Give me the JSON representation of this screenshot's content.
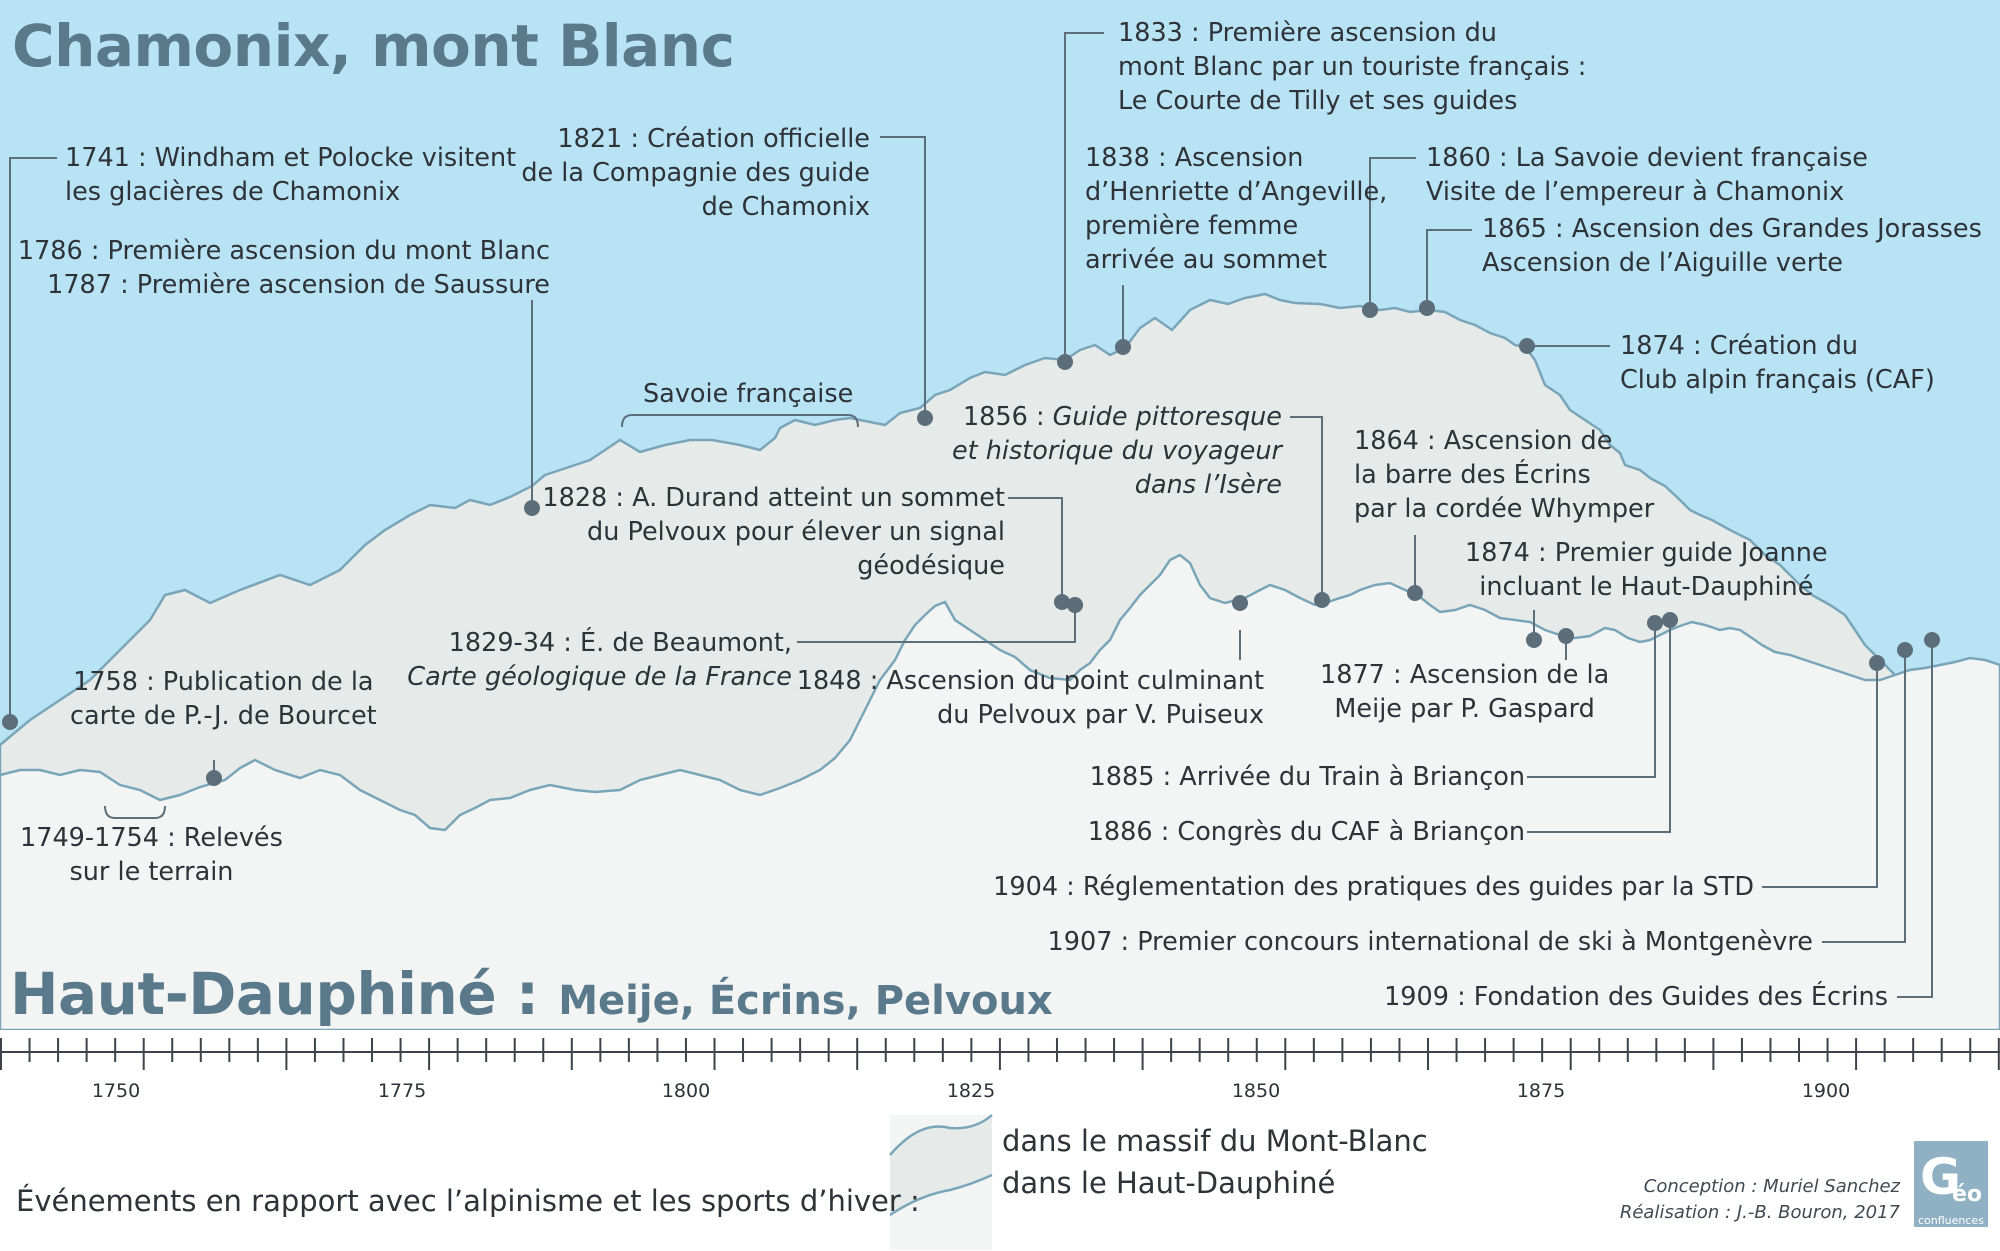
{
  "titles": {
    "top": "Chamonix, mont Blanc",
    "bottom_main": "Haut-Dauphiné : ",
    "bottom_sub": "Meije, Écrins, Pelvoux"
  },
  "colors": {
    "sky": "#b8e3f5",
    "mont_blanc_band": "#e6ebea",
    "haut_dauphine_band": "#f3f5f5",
    "outline": "#7aa5b8",
    "marker": "#5c6e7a",
    "title": "#5a7a8c"
  },
  "events": {
    "e1741": [
      "1741 : Windham et Polocke visitent",
      "les glacières de Chamonix"
    ],
    "e1786": [
      "1786 : Première ascension du mont Blanc",
      "1787 : Première ascension de Saussure"
    ],
    "e1821": [
      "1821 : Création officielle",
      "de la Compagnie des guide",
      "de Chamonix"
    ],
    "savoie": "Savoie française",
    "e1833": [
      "1833 : Première ascension du",
      "mont Blanc par un touriste français :",
      "Le Courte de Tilly et ses guides"
    ],
    "e1838": [
      "1838 : Ascension",
      "d’Henriette d’Angeville,",
      "première femme",
      "arrivée au sommet"
    ],
    "e1860": [
      "1860 : La Savoie devient française",
      "Visite de l’empereur à Chamonix"
    ],
    "e1865": [
      "1865 : Ascension des Grandes Jorasses",
      "Ascension de l’Aiguille verte"
    ],
    "e1874caf": [
      "1874 : Création du",
      "Club alpin français (CAF)"
    ],
    "e1856": {
      "prefix": "1856 : ",
      "italic": [
        "Guide pittoresque",
        "et historique du voyageur",
        "dans l’Isère"
      ]
    },
    "e1828": [
      "1828 : A. Durand atteint un sommet",
      "du Pelvoux pour élever un signal",
      "géodésique"
    ],
    "e1864": [
      "1864 : Ascension de",
      "la barre des Écrins",
      "par la cordée Whymper"
    ],
    "e1874j": [
      "1874 : Premier guide Joanne",
      "incluant le Haut-Dauphiné"
    ],
    "e1829": {
      "line1": "1829-34 : É. de Beaumont,",
      "line2": "Carte géologique de la France"
    },
    "e1758": [
      "1758 : Publication de la",
      "carte de P.-J. de Bourcet"
    ],
    "e1848": [
      "1848 : Ascension du point culminant",
      "du Pelvoux par V. Puiseux"
    ],
    "e1877": [
      "1877 : Ascension de la",
      "Meije par P. Gaspard"
    ],
    "e1749": [
      "1749-1754 : Relevés",
      "sur le terrain"
    ],
    "e1885": "1885 : Arrivée du Train à Briançon",
    "e1886": "1886 : Congrès du CAF à Briançon",
    "e1904": "1904 : Réglementation des pratiques des guides par la STD",
    "e1907": "1907 : Premier concours international de ski à Montgenèvre",
    "e1909": "1909 : Fondation des Guides des Écrins"
  },
  "axis": {
    "ticks": [
      "1750",
      "1775",
      "1800",
      "1825",
      "1850",
      "1875",
      "1900"
    ]
  },
  "legend": {
    "title": "Événements en rapport avec l’alpinisme et les sports d’hiver :",
    "mont_blanc": "dans le massif du Mont-Blanc",
    "haut_dauphine": "dans le Haut-Dauphiné"
  },
  "credits": {
    "conception": "Conception : Muriel Sanchez",
    "realisation": "Réalisation : J.-B. Bouron, 2017"
  },
  "logo": {
    "letter": "G",
    "rest": "éo",
    "sub": "confluences"
  }
}
